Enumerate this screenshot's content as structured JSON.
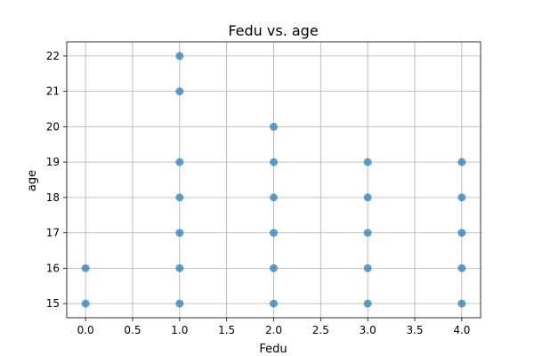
{
  "chart_data": {
    "type": "scatter",
    "title": "Fedu vs. age",
    "xlabel": "Fedu",
    "ylabel": "age",
    "xlim": [
      -0.2,
      4.2
    ],
    "ylim": [
      14.6,
      22.4
    ],
    "xticks": [
      0.0,
      0.5,
      1.0,
      1.5,
      2.0,
      2.5,
      3.0,
      3.5,
      4.0
    ],
    "xtick_labels": [
      "0.0",
      "0.5",
      "1.0",
      "1.5",
      "2.0",
      "2.5",
      "3.0",
      "3.5",
      "4.0"
    ],
    "yticks": [
      15,
      16,
      17,
      18,
      19,
      20,
      21,
      22
    ],
    "ytick_labels": [
      "15",
      "16",
      "17",
      "18",
      "19",
      "20",
      "21",
      "22"
    ],
    "grid": true,
    "marker_color": "#1f77b4",
    "points": [
      {
        "x": 0,
        "y": 15
      },
      {
        "x": 0,
        "y": 16
      },
      {
        "x": 1,
        "y": 15
      },
      {
        "x": 1,
        "y": 16
      },
      {
        "x": 1,
        "y": 17
      },
      {
        "x": 1,
        "y": 18
      },
      {
        "x": 1,
        "y": 19
      },
      {
        "x": 1,
        "y": 21
      },
      {
        "x": 1,
        "y": 22
      },
      {
        "x": 2,
        "y": 15
      },
      {
        "x": 2,
        "y": 16
      },
      {
        "x": 2,
        "y": 17
      },
      {
        "x": 2,
        "y": 18
      },
      {
        "x": 2,
        "y": 19
      },
      {
        "x": 2,
        "y": 20
      },
      {
        "x": 3,
        "y": 15
      },
      {
        "x": 3,
        "y": 16
      },
      {
        "x": 3,
        "y": 17
      },
      {
        "x": 3,
        "y": 18
      },
      {
        "x": 3,
        "y": 19
      },
      {
        "x": 4,
        "y": 15
      },
      {
        "x": 4,
        "y": 16
      },
      {
        "x": 4,
        "y": 17
      },
      {
        "x": 4,
        "y": 18
      },
      {
        "x": 4,
        "y": 19
      }
    ]
  }
}
